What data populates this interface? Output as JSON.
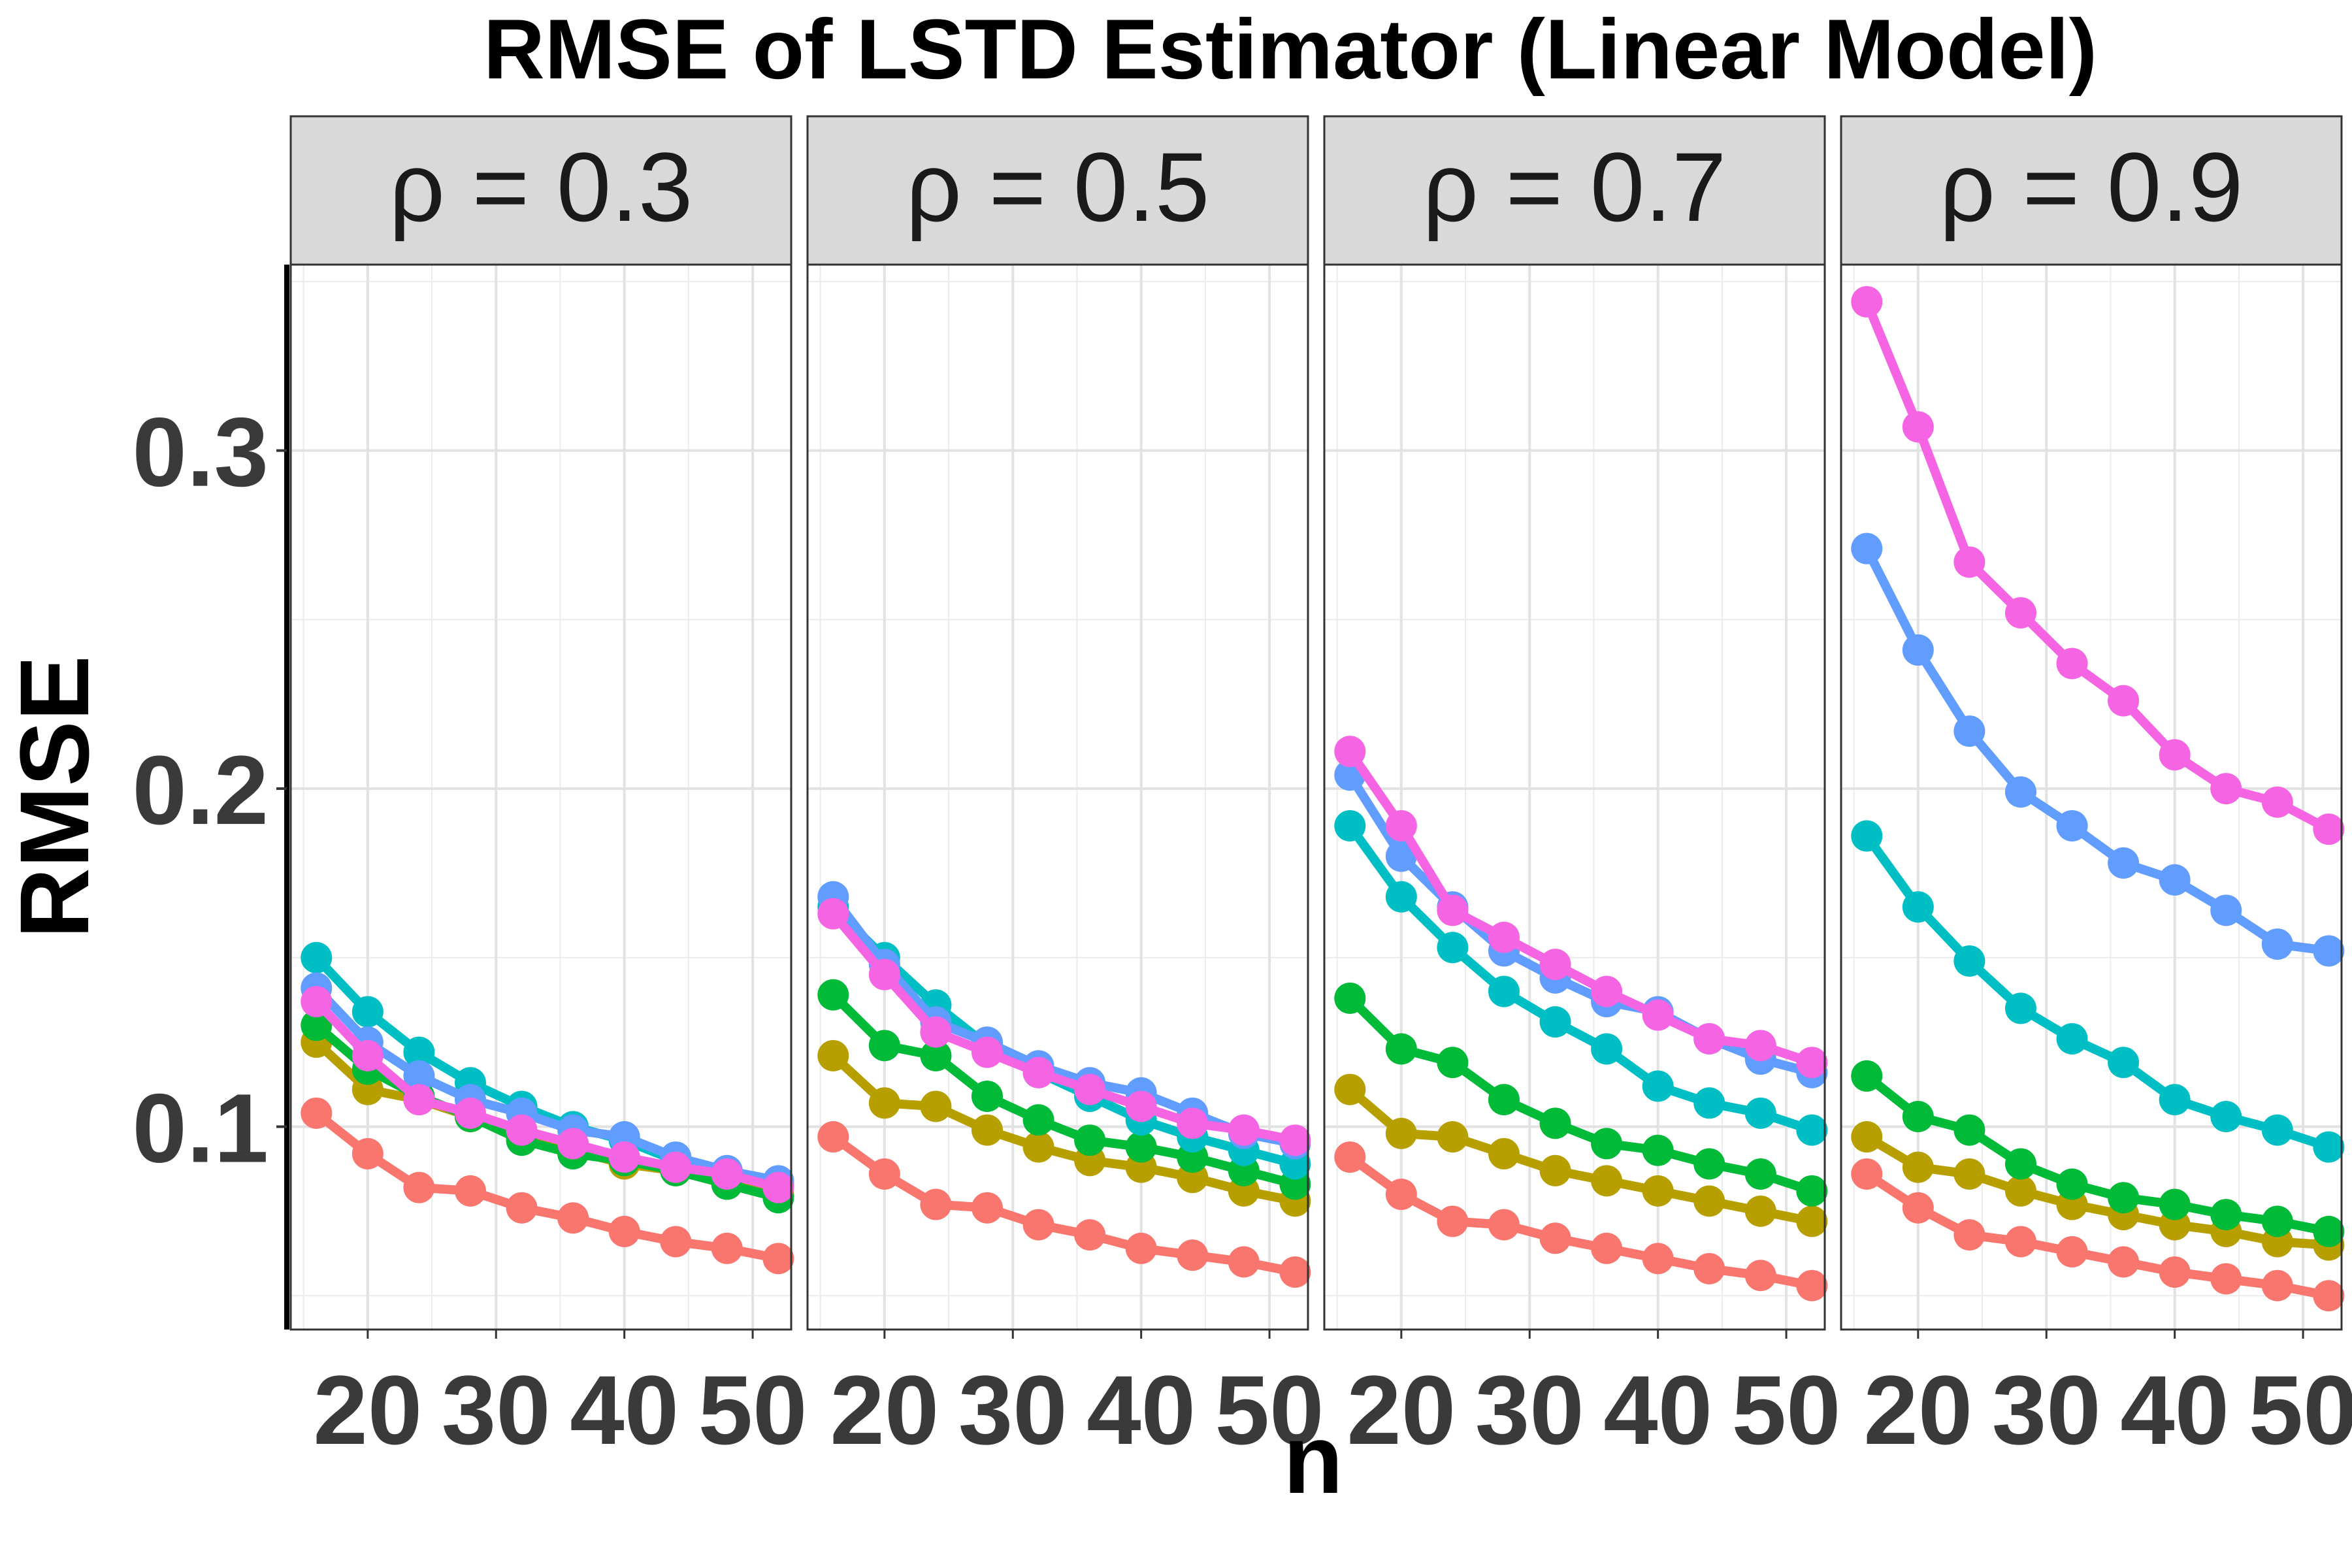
{
  "chart_data": {
    "type": "line",
    "title": "RMSE of LSTD Estimator (Linear Model)",
    "xlabel": "n",
    "ylabel": "RMSE",
    "xlim": [
      14,
      53
    ],
    "ylim": [
      0.04,
      0.355
    ],
    "x_ticks": [
      20,
      30,
      40,
      50
    ],
    "x_tick_labels": [
      "20",
      "30",
      "40",
      "50"
    ],
    "y_ticks": [
      0.1,
      0.2,
      0.3
    ],
    "y_tick_labels": [
      "0.1",
      "0.2",
      "0.3"
    ],
    "grid": true,
    "x": [
      16,
      20,
      24,
      28,
      32,
      36,
      40,
      44,
      48,
      52
    ],
    "series_colors": [
      "#F8766D",
      "#B79F00",
      "#00BA38",
      "#00BFC4",
      "#619CFF",
      "#F564E3"
    ],
    "facets": [
      {
        "label": "ρ = 0.3",
        "series": [
          {
            "values": [
              0.104,
              0.092,
              0.082,
              0.081,
              0.076,
              0.073,
              0.069,
              0.066,
              0.064,
              0.061
            ]
          },
          {
            "values": [
              0.125,
              0.111,
              0.108,
              0.103,
              0.097,
              0.093,
              0.089,
              0.087,
              0.083,
              0.08
            ]
          },
          {
            "values": [
              0.13,
              0.117,
              0.109,
              0.103,
              0.096,
              0.092,
              0.09,
              0.087,
              0.083,
              0.079
            ]
          },
          {
            "values": [
              0.15,
              0.134,
              0.122,
              0.113,
              0.106,
              0.1,
              0.096,
              0.09,
              0.086,
              0.083
            ]
          },
          {
            "values": [
              0.141,
              0.125,
              0.115,
              0.108,
              0.104,
              0.099,
              0.097,
              0.091,
              0.087,
              0.084
            ]
          },
          {
            "values": [
              0.137,
              0.121,
              0.108,
              0.104,
              0.099,
              0.095,
              0.091,
              0.088,
              0.086,
              0.082
            ]
          }
        ]
      },
      {
        "label": "ρ = 0.5",
        "series": [
          {
            "values": [
              0.097,
              0.086,
              0.077,
              0.076,
              0.071,
              0.068,
              0.064,
              0.062,
              0.06,
              0.057
            ]
          },
          {
            "values": [
              0.121,
              0.107,
              0.106,
              0.099,
              0.094,
              0.09,
              0.088,
              0.085,
              0.081,
              0.078
            ]
          },
          {
            "values": [
              0.139,
              0.124,
              0.121,
              0.109,
              0.102,
              0.096,
              0.094,
              0.091,
              0.087,
              0.083
            ]
          },
          {
            "values": [
              0.165,
              0.15,
              0.136,
              0.124,
              0.116,
              0.109,
              0.102,
              0.097,
              0.093,
              0.089
            ]
          },
          {
            "values": [
              0.168,
              0.148,
              0.131,
              0.125,
              0.118,
              0.113,
              0.11,
              0.104,
              0.098,
              0.095
            ]
          },
          {
            "values": [
              0.163,
              0.145,
              0.128,
              0.122,
              0.116,
              0.111,
              0.106,
              0.101,
              0.099,
              0.096
            ]
          }
        ]
      },
      {
        "label": "ρ = 0.7",
        "series": [
          {
            "values": [
              0.091,
              0.08,
              0.072,
              0.071,
              0.067,
              0.064,
              0.061,
              0.058,
              0.056,
              0.053
            ]
          },
          {
            "values": [
              0.111,
              0.098,
              0.097,
              0.092,
              0.087,
              0.084,
              0.081,
              0.078,
              0.075,
              0.072
            ]
          },
          {
            "values": [
              0.138,
              0.123,
              0.119,
              0.108,
              0.101,
              0.095,
              0.093,
              0.089,
              0.086,
              0.081
            ]
          },
          {
            "values": [
              0.189,
              0.168,
              0.153,
              0.14,
              0.131,
              0.123,
              0.112,
              0.107,
              0.104,
              0.099
            ]
          },
          {
            "values": [
              0.204,
              0.18,
              0.165,
              0.152,
              0.144,
              0.137,
              0.134,
              0.126,
              0.12,
              0.116
            ]
          },
          {
            "values": [
              0.211,
              0.189,
              0.164,
              0.156,
              0.148,
              0.14,
              0.133,
              0.126,
              0.124,
              0.119
            ]
          }
        ]
      },
      {
        "label": "ρ = 0.9",
        "series": [
          {
            "values": [
              0.086,
              0.076,
              0.068,
              0.066,
              0.063,
              0.06,
              0.057,
              0.055,
              0.053,
              0.05
            ]
          },
          {
            "values": [
              0.097,
              0.088,
              0.086,
              0.081,
              0.077,
              0.074,
              0.071,
              0.069,
              0.066,
              0.065
            ]
          },
          {
            "values": [
              0.115,
              0.103,
              0.099,
              0.089,
              0.083,
              0.079,
              0.077,
              0.074,
              0.072,
              0.069
            ]
          },
          {
            "values": [
              0.186,
              0.165,
              0.149,
              0.135,
              0.126,
              0.119,
              0.108,
              0.103,
              0.099,
              0.094
            ]
          },
          {
            "values": [
              0.271,
              0.241,
              0.217,
              0.199,
              0.189,
              0.178,
              0.173,
              0.164,
              0.154,
              0.152
            ]
          },
          {
            "values": [
              0.344,
              0.307,
              0.267,
              0.252,
              0.237,
              0.226,
              0.21,
              0.2,
              0.196,
              0.188
            ]
          }
        ]
      }
    ]
  }
}
